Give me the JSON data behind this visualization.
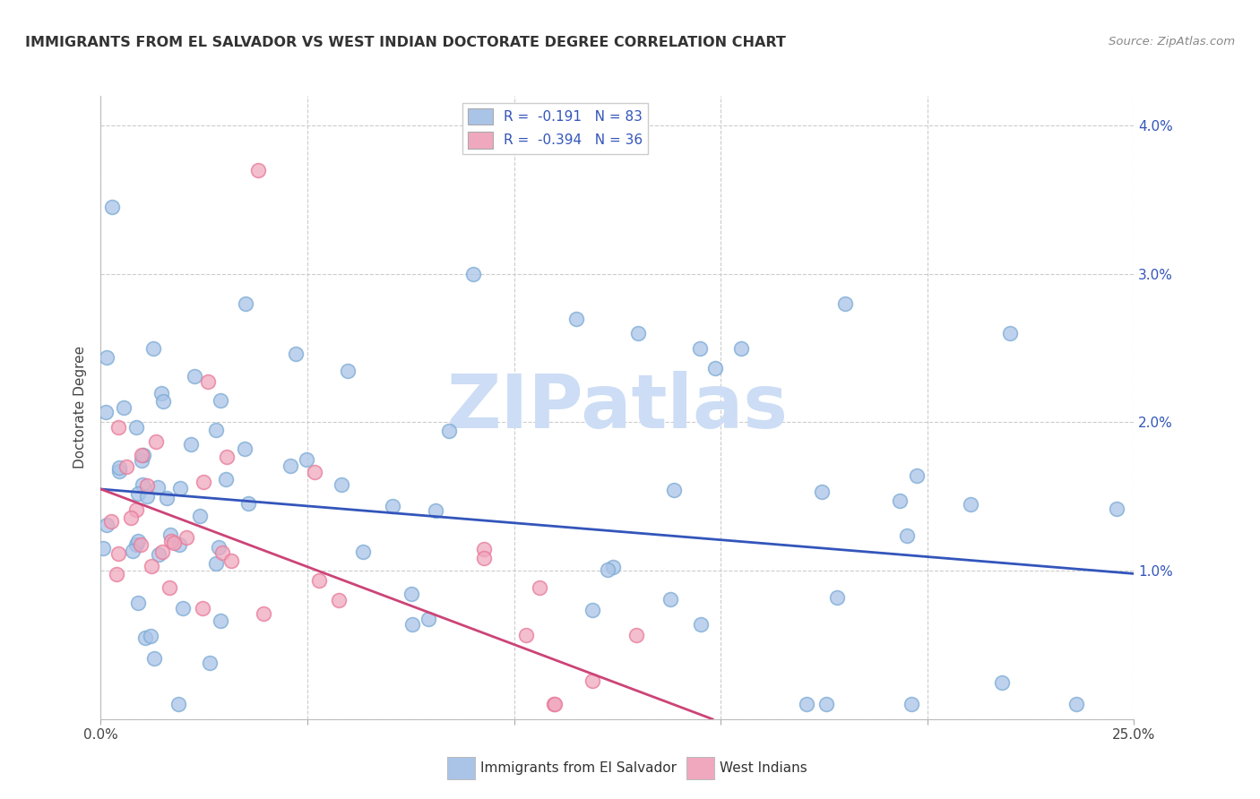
{
  "title": "IMMIGRANTS FROM EL SALVADOR VS WEST INDIAN DOCTORATE DEGREE CORRELATION CHART",
  "source": "Source: ZipAtlas.com",
  "ylabel": "Doctorate Degree",
  "xlim": [
    0.0,
    0.25
  ],
  "ylim": [
    0.0,
    0.042
  ],
  "ytick_vals": [
    0.0,
    0.01,
    0.02,
    0.03,
    0.04
  ],
  "ytick_labels": [
    "",
    "1.0%",
    "2.0%",
    "3.0%",
    "4.0%"
  ],
  "xtick_vals": [
    0.0,
    0.05,
    0.1,
    0.15,
    0.2,
    0.25
  ],
  "xtick_labels": [
    "0.0%",
    "",
    "",
    "",
    "",
    "25.0%"
  ],
  "color_es": "#aac4e8",
  "color_wi": "#f0a8be",
  "color_es_edge": "#7aaad4",
  "color_wi_edge": "#e87898",
  "trendline_es_color": "#3355bb",
  "trendline_wi_color": "#cc4477",
  "watermark_color": "#ccddf5",
  "legend_label_es": "R =  -0.191   N = 83",
  "legend_label_wi": "R =  -0.394   N = 36",
  "bottom_label_es": "Immigrants from El Salvador",
  "bottom_label_wi": "West Indians",
  "trendline_es_x0": 0.0,
  "trendline_es_y0": 0.0155,
  "trendline_es_x1": 0.25,
  "trendline_es_y1": 0.0098,
  "trendline_wi_x0": 0.0,
  "trendline_wi_y0": 0.0155,
  "trendline_wi_x1": 0.148,
  "trendline_wi_y1": 0.0,
  "seed": 1234,
  "n_es": 83,
  "n_wi": 36
}
